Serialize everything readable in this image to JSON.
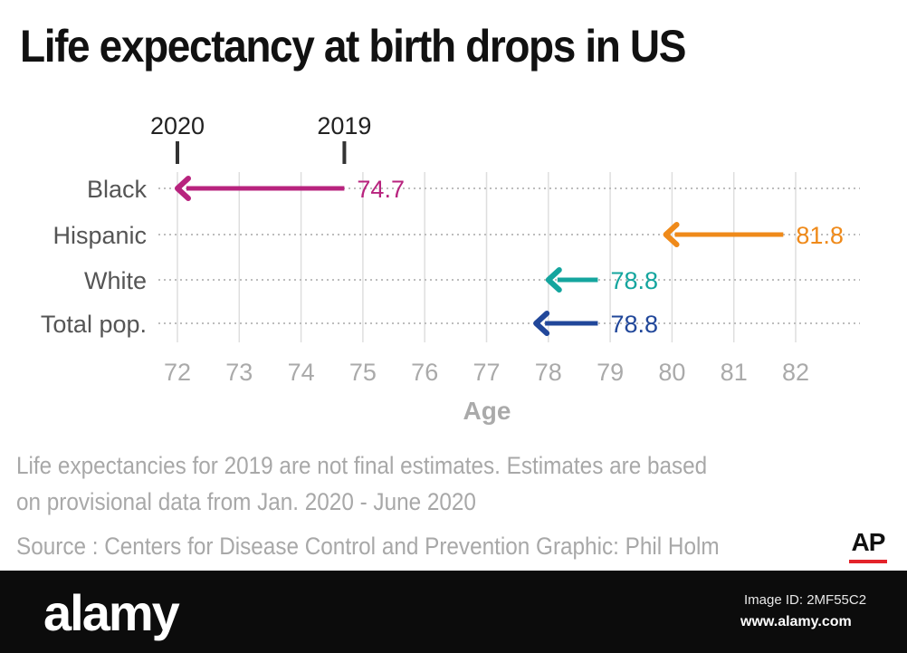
{
  "title": "Life expectancy at birth drops in US",
  "note_line1": "Life expectancies for 2019 are not final estimates. Estimates are based",
  "note_line2": "on provisional data from Jan. 2020 - June 2020",
  "source": "Source : Centers for Disease Control and Prevention  Graphic: Phil Holm",
  "ap_logo_text": "AP",
  "watermark": {
    "brand": "alamy",
    "image_id": "Image ID: 2MF55C2",
    "url": "www.alamy.com"
  },
  "colors": {
    "black": "#b8237e",
    "hispanic": "#ef8a1a",
    "white": "#14a59e",
    "total": "#21479a",
    "axis_text": "#aaaaaa",
    "category_text": "#555555"
  },
  "chart_data": {
    "type": "arrow_range",
    "title": "Life expectancy at birth drops in US",
    "xlabel": "Age",
    "xlim": [
      72,
      82
    ],
    "xticks": [
      72,
      73,
      74,
      75,
      76,
      77,
      78,
      79,
      80,
      81,
      82
    ],
    "year_markers": [
      {
        "label": "2020",
        "x": 72.0
      },
      {
        "label": "2019",
        "x": 74.7
      }
    ],
    "series": [
      {
        "category": "Black",
        "from_2019": 74.7,
        "to_2020": 72.0,
        "label": "74.7",
        "color": "#b8237e"
      },
      {
        "category": "Hispanic",
        "from_2019": 81.8,
        "to_2020": 79.9,
        "label": "81.8",
        "color": "#ef8a1a"
      },
      {
        "category": "White",
        "from_2019": 78.8,
        "to_2020": 78.0,
        "label": "78.8",
        "color": "#14a59e"
      },
      {
        "category": "Total pop.",
        "from_2019": 78.8,
        "to_2020": 77.8,
        "label": "78.8",
        "color": "#21479a"
      }
    ]
  }
}
